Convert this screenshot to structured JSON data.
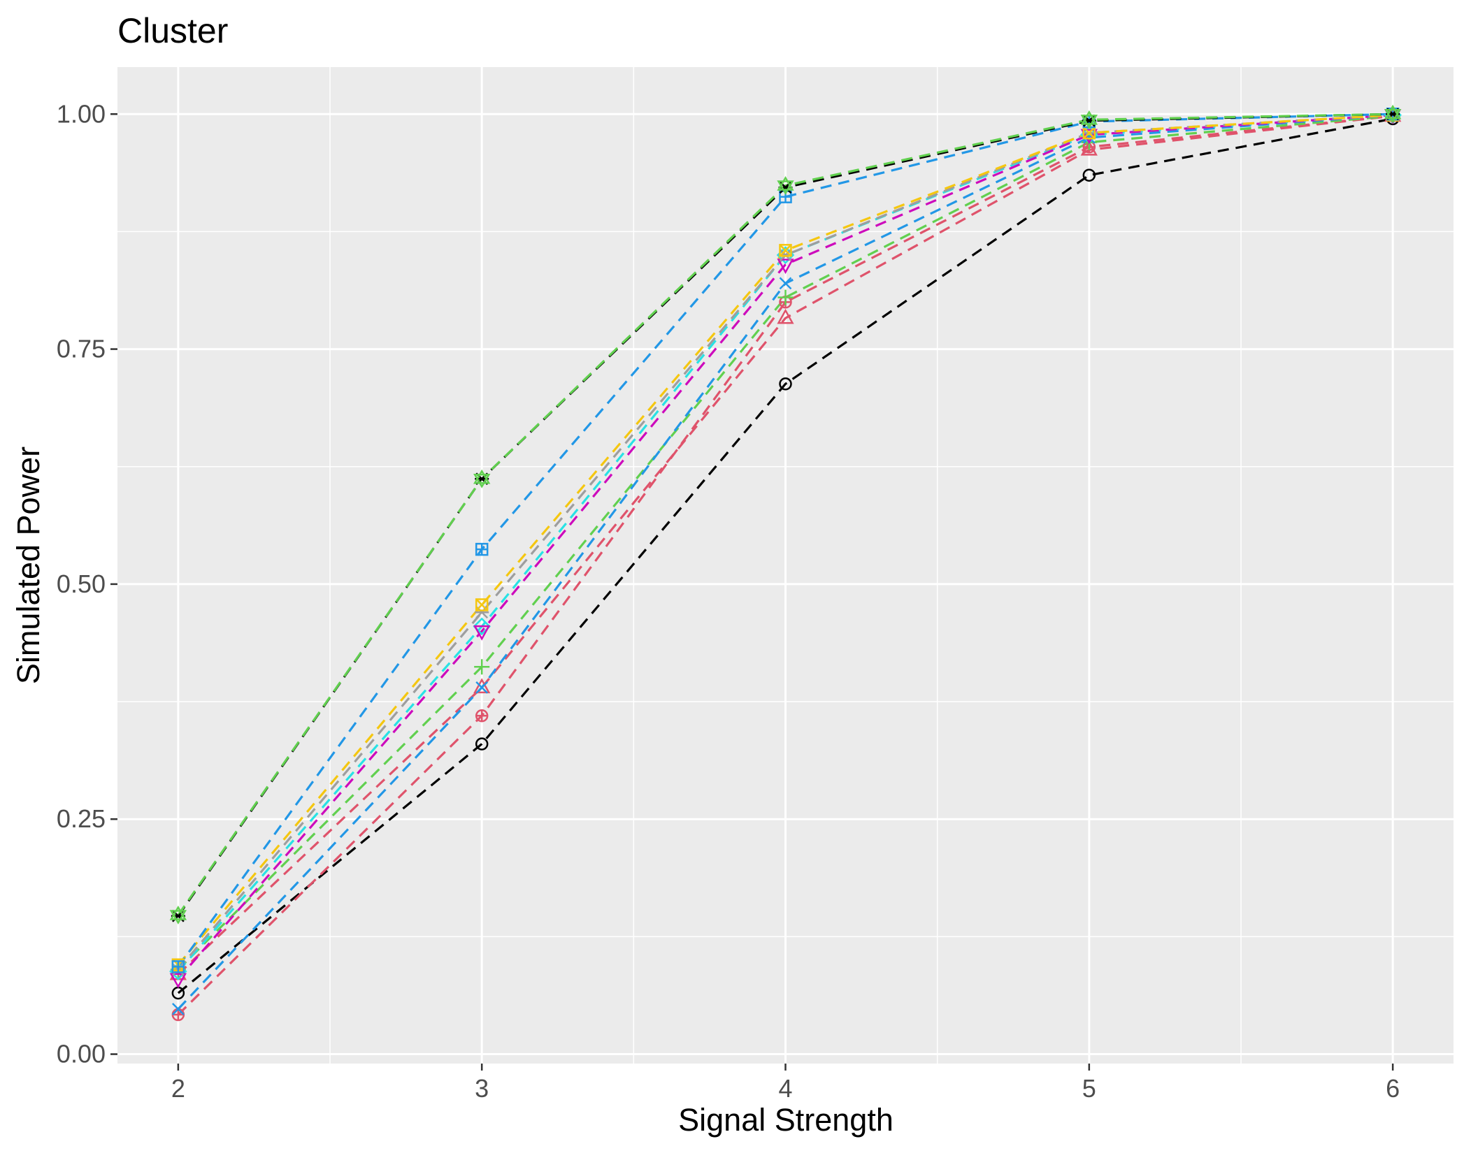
{
  "chart_data": {
    "type": "line",
    "title": "Cluster",
    "xlabel": "Signal Strength",
    "ylabel": "Simulated Power",
    "x": [
      2,
      3,
      4,
      5,
      6
    ],
    "xlim": [
      1.8,
      6.2
    ],
    "ylim": [
      -0.01,
      1.05
    ],
    "x_ticks": [
      "2",
      "3",
      "4",
      "5",
      "6"
    ],
    "y_ticks": [
      "0.00",
      "0.25",
      "0.50",
      "0.75",
      "1.00"
    ],
    "y_tick_values": [
      0,
      0.25,
      0.5,
      0.75,
      1.0
    ],
    "grid": true,
    "legend": "none",
    "line_style": "dashed",
    "series": [
      {
        "color": "#000000",
        "marker": "circle",
        "values": [
          0.065,
          0.33,
          0.713,
          0.935,
          0.995
        ]
      },
      {
        "color": "#DF536B",
        "marker": "circle-plus",
        "values": [
          0.042,
          0.36,
          0.8,
          0.965,
          0.998
        ]
      },
      {
        "color": "#DF536B",
        "marker": "triangle",
        "values": [
          0.085,
          0.39,
          0.783,
          0.962,
          0.998
        ]
      },
      {
        "color": "#61D04F",
        "marker": "plus",
        "values": [
          0.09,
          0.412,
          0.805,
          0.97,
          0.998
        ]
      },
      {
        "color": "#2297E6",
        "marker": "cross",
        "values": [
          0.048,
          0.39,
          0.82,
          0.975,
          0.999
        ]
      },
      {
        "color": "#28E2E5",
        "marker": "diamond",
        "values": [
          0.088,
          0.455,
          0.85,
          0.978,
          0.999
        ]
      },
      {
        "color": "#CD0BBC",
        "marker": "triangle-down",
        "values": [
          0.08,
          0.45,
          0.84,
          0.978,
          0.999
        ]
      },
      {
        "color": "#9E9E9E",
        "marker": "asterisk",
        "values": [
          0.09,
          0.47,
          0.85,
          0.98,
          0.999
        ]
      },
      {
        "color": "#F5C710",
        "marker": "square-cross",
        "values": [
          0.095,
          0.478,
          0.855,
          0.98,
          0.999
        ]
      },
      {
        "color": "#2297E6",
        "marker": "square-plus",
        "values": [
          0.093,
          0.537,
          0.912,
          0.992,
          1.0
        ]
      },
      {
        "color": "#000000",
        "marker": "asterisk",
        "values": [
          0.147,
          0.612,
          0.922,
          0.993,
          1.0
        ]
      },
      {
        "color": "#61D04F",
        "marker": "star",
        "values": [
          0.148,
          0.612,
          0.924,
          0.994,
          1.0
        ]
      }
    ]
  }
}
